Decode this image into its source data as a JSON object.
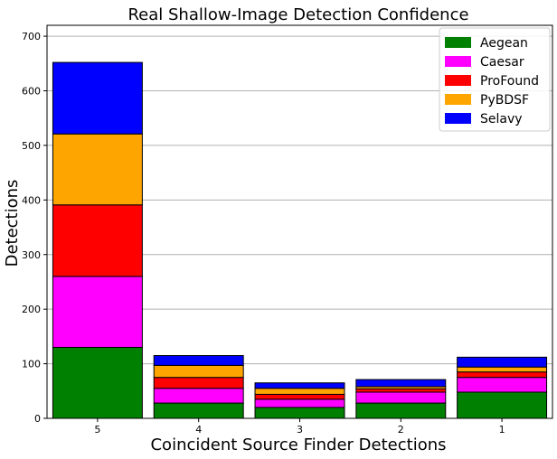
{
  "chart_data": {
    "type": "bar",
    "stacked": true,
    "title": "Real Shallow-Image Detection Confidence",
    "xlabel": "Coincident Source Finder Detections",
    "ylabel": "Detections",
    "categories": [
      "5",
      "4",
      "3",
      "2",
      "1"
    ],
    "ylim": [
      0,
      720
    ],
    "yticks": [
      0,
      100,
      200,
      300,
      400,
      500,
      600,
      700
    ],
    "grid": "horizontal",
    "legend_position": "top-right",
    "series": [
      {
        "name": "Aegean",
        "color": "#008000",
        "values": [
          130,
          28,
          20,
          28,
          48
        ]
      },
      {
        "name": "Caesar",
        "color": "#ff00ff",
        "values": [
          130,
          27,
          15,
          20,
          27
        ]
      },
      {
        "name": "ProFound",
        "color": "#ff0000",
        "values": [
          131,
          20,
          9,
          6,
          10
        ]
      },
      {
        "name": "PyBDSF",
        "color": "#ffa500",
        "values": [
          130,
          22,
          11,
          4,
          9
        ]
      },
      {
        "name": "Selavy",
        "color": "#0000ff",
        "values": [
          131,
          18,
          10,
          13,
          18
        ]
      }
    ]
  }
}
